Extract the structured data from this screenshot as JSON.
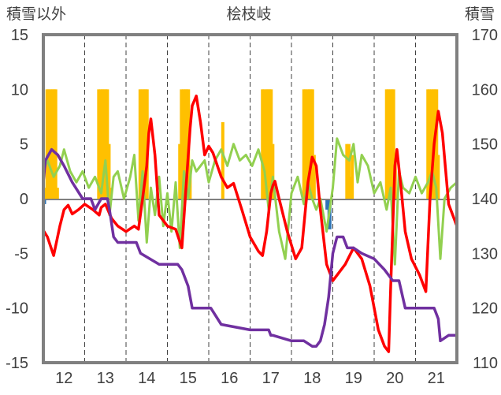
{
  "chart_data": {
    "type": "line",
    "title": "桧枝岐",
    "left_axis_label": "積雪以外",
    "right_axis_label": "積雪",
    "ylim_left": [
      -15,
      15
    ],
    "yticks_left": [
      15,
      10,
      5,
      0,
      -5,
      -10,
      -15
    ],
    "ylim_right": [
      110,
      170
    ],
    "yticks_right": [
      170,
      160,
      150,
      140,
      130,
      120,
      110
    ],
    "xlim": [
      11.5,
      21.5
    ],
    "xticks": [
      12,
      13,
      14,
      15,
      16,
      17,
      18,
      19,
      20,
      21
    ],
    "grid": "vertical dashed at day boundaries",
    "colors": {
      "sunshine": "#ffc000",
      "precipitation": "#2e75b6",
      "temperature": "#ff0000",
      "wind": "#92d050",
      "snow_depth": "#7030a0",
      "frame": "#808080"
    },
    "series": [
      {
        "key": "sunshine",
        "type": "bar",
        "axis": "left",
        "x": [
          11.54,
          11.58,
          11.62,
          11.67,
          11.71,
          11.75,
          11.79,
          11.83,
          12.83,
          12.88,
          12.92,
          12.96,
          13.0,
          13.04,
          13.08,
          13.12,
          13.83,
          13.88,
          13.92,
          13.96,
          14.0,
          14.79,
          14.83,
          14.88,
          14.92,
          14.96,
          15.0,
          15.04,
          15.83,
          16.79,
          16.83,
          16.88,
          16.92,
          16.96,
          17.0,
          17.04,
          17.79,
          17.83,
          17.88,
          17.92,
          17.96,
          18.0,
          18.04,
          18.83,
          18.88,
          18.92,
          18.96,
          19.79,
          19.83,
          19.88,
          19.92,
          19.96,
          20.0,
          20.79,
          20.83,
          20.88,
          20.92,
          20.96,
          21.0,
          21.04
        ],
        "values": [
          1,
          10,
          10,
          10,
          10,
          10,
          10,
          1,
          10,
          10,
          10,
          10,
          10,
          10,
          5,
          1,
          10,
          10,
          10,
          10,
          10,
          5,
          10,
          10,
          10,
          10,
          10,
          3,
          7,
          10,
          10,
          10,
          10,
          10,
          10,
          5,
          10,
          10,
          10,
          10,
          10,
          10,
          4,
          5,
          5,
          2,
          4,
          10,
          10,
          10,
          10,
          10,
          4,
          10,
          10,
          10,
          10,
          10,
          10,
          4
        ]
      },
      {
        "key": "precipitation",
        "type": "bar",
        "axis": "left",
        "x": [
          11.5,
          18.35,
          18.4
        ],
        "values": [
          -0.5,
          -1.0,
          -2.8
        ]
      },
      {
        "key": "temperature",
        "type": "line",
        "axis": "left",
        "x": [
          11.5,
          11.6,
          11.75,
          11.9,
          12.0,
          12.1,
          12.2,
          12.35,
          12.5,
          12.7,
          12.85,
          12.9,
          13.0,
          13.15,
          13.3,
          13.5,
          13.7,
          13.8,
          13.9,
          14.0,
          14.05,
          14.1,
          14.2,
          14.3,
          14.5,
          14.7,
          14.85,
          14.95,
          15.05,
          15.1,
          15.2,
          15.3,
          15.4,
          15.5,
          15.6,
          15.8,
          15.95,
          16.1,
          16.3,
          16.5,
          16.7,
          16.8,
          16.9,
          17.0,
          17.05,
          17.1,
          17.2,
          17.4,
          17.6,
          17.75,
          17.9,
          18.0,
          18.1,
          18.2,
          18.35,
          18.5,
          18.6,
          18.8,
          19.0,
          19.2,
          19.4,
          19.6,
          19.75,
          19.85,
          19.9,
          20.0,
          20.05,
          20.15,
          20.25,
          20.4,
          20.6,
          20.75,
          20.85,
          20.95,
          21.05,
          21.15,
          21.3,
          21.5
        ],
        "values": [
          -2.9,
          -3.5,
          -5.2,
          -2.5,
          -1.0,
          -0.6,
          -1.4,
          -1.0,
          -0.5,
          -1.0,
          -1.5,
          -0.8,
          -0.5,
          -1.8,
          -2.5,
          -3.0,
          -2.5,
          -2.8,
          0.0,
          3.0,
          6.0,
          7.3,
          4.0,
          -1.5,
          -2.5,
          -2.8,
          -4.5,
          1.0,
          6.5,
          8.5,
          9.4,
          7.0,
          4.0,
          4.8,
          4.2,
          2.0,
          1.0,
          1.4,
          -1.0,
          -3.5,
          -4.8,
          -5.2,
          -3.0,
          0.5,
          1.2,
          1.6,
          0.0,
          -3.0,
          -5.5,
          -4.5,
          1.5,
          3.8,
          3.0,
          -1.0,
          -6.0,
          -7.5,
          -7.0,
          -6.0,
          -4.5,
          -5.5,
          -8.0,
          -12.0,
          -13.5,
          -14.0,
          -8.0,
          3.0,
          4.5,
          1.0,
          -3.0,
          -5.5,
          -7.0,
          -8.5,
          0.0,
          5.0,
          8.0,
          6.0,
          -0.5,
          -2.5
        ]
      },
      {
        "key": "wind",
        "type": "line",
        "axis": "left",
        "x": [
          11.5,
          11.6,
          11.75,
          11.9,
          12.0,
          12.15,
          12.3,
          12.45,
          12.6,
          12.75,
          12.9,
          13.0,
          13.1,
          13.2,
          13.3,
          13.45,
          13.6,
          13.7,
          13.8,
          13.9,
          14.0,
          14.1,
          14.2,
          14.3,
          14.4,
          14.5,
          14.6,
          14.7,
          14.8,
          14.9,
          15.0,
          15.1,
          15.2,
          15.3,
          15.4,
          15.5,
          15.65,
          15.8,
          15.95,
          16.1,
          16.25,
          16.4,
          16.55,
          16.7,
          16.85,
          16.95,
          17.05,
          17.2,
          17.35,
          17.5,
          17.65,
          17.8,
          17.9,
          18.0,
          18.1,
          18.2,
          18.35,
          18.5,
          18.6,
          18.75,
          18.9,
          19.0,
          19.1,
          19.2,
          19.35,
          19.5,
          19.65,
          19.8,
          19.9,
          20.0,
          20.1,
          20.2,
          20.35,
          20.5,
          20.65,
          20.8,
          20.9,
          21.0,
          21.1,
          21.2,
          21.35,
          21.5
        ],
        "values": [
          2.5,
          3.5,
          2.0,
          3.0,
          4.5,
          2.5,
          1.5,
          2.5,
          1.0,
          2.0,
          0.5,
          3.5,
          -1.5,
          2.0,
          2.5,
          0.0,
          2.0,
          4.0,
          -2.0,
          2.5,
          -4.0,
          1.0,
          -1.5,
          2.0,
          -2.5,
          0.5,
          -3.0,
          1.5,
          -4.5,
          2.5,
          0.0,
          3.5,
          2.5,
          3.0,
          3.5,
          1.5,
          3.5,
          4.5,
          3.0,
          5.0,
          3.5,
          4.0,
          3.0,
          4.5,
          2.5,
          -1.0,
          2.0,
          -3.0,
          -5.5,
          0.5,
          2.0,
          -0.5,
          1.5,
          0.0,
          -1.0,
          0.0,
          -3.0,
          1.0,
          5.5,
          4.0,
          3.5,
          5.0,
          1.5,
          4.0,
          3.0,
          0.5,
          1.5,
          -1.0,
          1.0,
          -6.0,
          2.5,
          1.0,
          0.5,
          2.0,
          0.5,
          1.5,
          2.5,
          1.0,
          -5.5,
          0.0,
          1.0,
          1.5
        ]
      },
      {
        "key": "snow_depth",
        "type": "line",
        "axis": "right",
        "x": [
          11.5,
          11.55,
          11.7,
          11.85,
          12.0,
          12.2,
          12.45,
          12.65,
          12.75,
          12.9,
          13.05,
          13.1,
          13.2,
          13.3,
          13.75,
          13.85,
          14.3,
          14.75,
          14.85,
          15.0,
          15.1,
          15.55,
          15.8,
          16.5,
          16.95,
          17.0,
          17.05,
          17.5,
          17.8,
          18.0,
          18.1,
          18.2,
          18.3,
          18.4,
          18.5,
          18.6,
          18.75,
          18.85,
          19.0,
          19.2,
          19.5,
          19.75,
          19.95,
          20.1,
          20.25,
          20.5,
          20.6,
          20.95,
          21.05,
          21.1,
          21.3,
          21.5
        ],
        "values": [
          143,
          147,
          149,
          148,
          146,
          143,
          140,
          140,
          138,
          140,
          140,
          138,
          133,
          132,
          132,
          130,
          128,
          128,
          127,
          124,
          120,
          120,
          117,
          116,
          116,
          115,
          115,
          114,
          114,
          113,
          113,
          114,
          117,
          122,
          130,
          133,
          133,
          131,
          131,
          130,
          129,
          127,
          125,
          125,
          120,
          120,
          120,
          120,
          118,
          114,
          115,
          115
        ]
      }
    ]
  }
}
